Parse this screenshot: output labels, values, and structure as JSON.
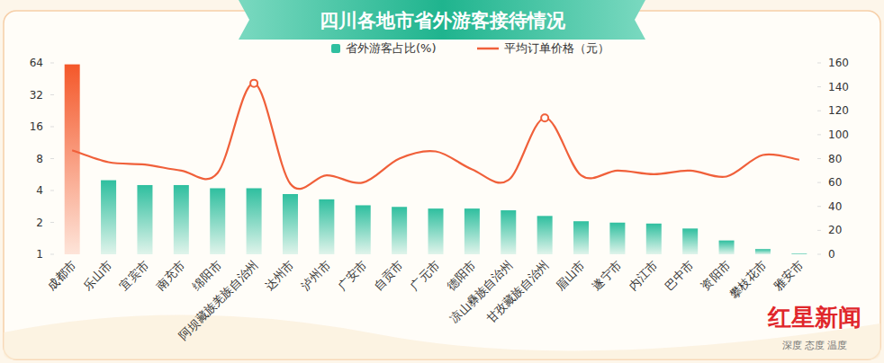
{
  "chart_data": {
    "type": "bar",
    "title": "四川各地市省外游客接待情况",
    "categories": [
      "成都市",
      "乐山市",
      "宜宾市",
      "南充市",
      "绵阳市",
      "阿坝藏族羌族自治州",
      "达州市",
      "泸州市",
      "广安市",
      "自贡市",
      "广元市",
      "德阳市",
      "凉山彝族自治州",
      "甘孜藏族自治州",
      "眉山市",
      "遂宁市",
      "内江市",
      "巴中市",
      "资阳市",
      "攀枝花市",
      "雅安市"
    ],
    "series": [
      {
        "name": "省外游客占比(%)",
        "type": "bar",
        "values": [
          62,
          5.0,
          4.5,
          4.5,
          4.2,
          4.2,
          3.7,
          3.3,
          2.9,
          2.8,
          2.7,
          2.7,
          2.6,
          2.3,
          2.05,
          1.99,
          1.95,
          1.75,
          1.35,
          1.12,
          1.02
        ],
        "colors": [
          "#f4582a",
          "#2fbf9f",
          "#2fbf9f",
          "#2fbf9f",
          "#2fbf9f",
          "#2fbf9f",
          "#2fbf9f",
          "#2fbf9f",
          "#2fbf9f",
          "#2fbf9f",
          "#2fbf9f",
          "#2fbf9f",
          "#2fbf9f",
          "#2fbf9f",
          "#2fbf9f",
          "#2fbf9f",
          "#2fbf9f",
          "#2fbf9f",
          "#2fbf9f",
          "#2fbf9f",
          "#2fbf9f"
        ]
      },
      {
        "name": "平均订单价格（元）",
        "type": "line",
        "axis": "y2",
        "color": "#f0603a",
        "line_style": "smooth",
        "values": [
          87,
          77,
          75,
          70,
          68,
          143,
          59,
          66,
          60,
          80,
          86,
          71,
          62,
          114,
          66,
          70,
          67,
          70,
          65,
          83,
          79
        ]
      }
    ],
    "log": "y",
    "ylim": [
      1,
      64
    ],
    "yticks": [
      1,
      2,
      4,
      8,
      16,
      32,
      64
    ],
    "y2lim": [
      0,
      160
    ],
    "y2ticks": [
      0,
      20,
      40,
      60,
      80,
      100,
      120,
      140,
      160
    ],
    "grid": false,
    "legend": "top",
    "annotations": [
      "红星新闻",
      "深度 态度 温度"
    ]
  }
}
